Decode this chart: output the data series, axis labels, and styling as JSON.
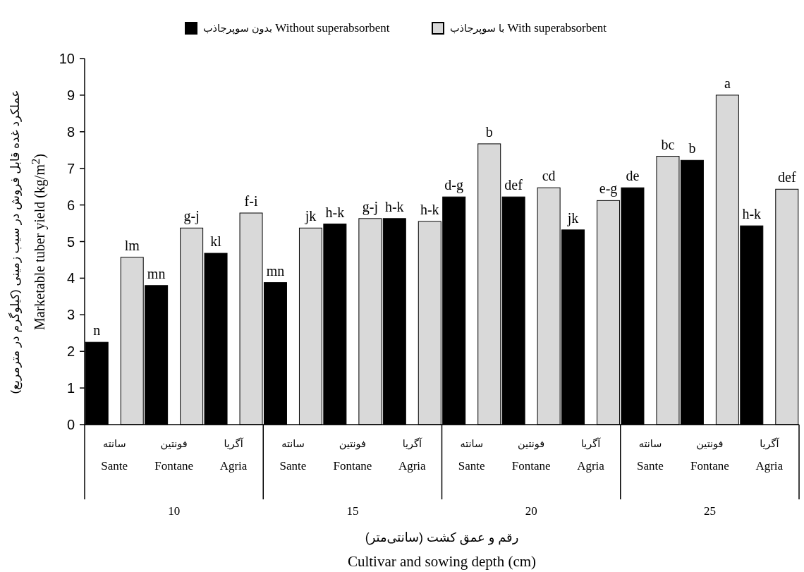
{
  "chart_data": {
    "type": "bar",
    "ylabel": "عملکرد غده قابل فروش در سیب زمینی (کیلوگرم در مترمربع) Marketable tuber yield (kg/m$^{2}$)",
    "xlabel": "رقم و عمق کشت (سانتی‌متر) Cultivar and sowing depth (cm)",
    "categories": [
      "سانته Sante",
      "فونتین Fontane",
      "آگریا Agria",
      "سانته Sante",
      "فونتین Fontane",
      "آگریا Agria",
      "سانته Sante",
      "فونتین Fontane",
      "آگریا Agria",
      "سانته Sante",
      "فونتین Fontane",
      "آگریا Agria"
    ],
    "series": [
      {
        "name": "بدون سوپرجاذب Without superabsorbent",
        "color": "#000000",
        "values": [
          2.25,
          3.8,
          4.68,
          3.88,
          5.48,
          5.63,
          6.22,
          6.22,
          5.32,
          6.47,
          7.22,
          5.43
        ],
        "value_labels": [
          "n",
          "mn",
          "kl",
          "mn",
          "h-k",
          "h-k",
          "d-g",
          "def",
          "jk",
          "de",
          "b",
          "h-k"
        ]
      },
      {
        "name": "با سوپرجاذب With superabsorbent",
        "color": "#d9d9d9",
        "values": [
          4.57,
          5.37,
          5.78,
          5.37,
          5.63,
          5.55,
          7.67,
          6.47,
          6.12,
          7.33,
          9.0,
          6.43
        ],
        "value_labels": [
          "lm",
          "g-j",
          "f-i",
          "jk",
          "g-j",
          "h-k",
          "b",
          "cd",
          "e-g",
          "bc",
          "a",
          "def"
        ]
      }
    ],
    "annotations": [
      "10",
      "15",
      "20",
      "25"
    ],
    "ylim": [
      0,
      10
    ],
    "yticks": [
      0,
      1,
      2,
      3,
      4,
      5,
      6,
      7,
      8,
      9,
      10
    ],
    "grid": false,
    "legend": "top"
  }
}
